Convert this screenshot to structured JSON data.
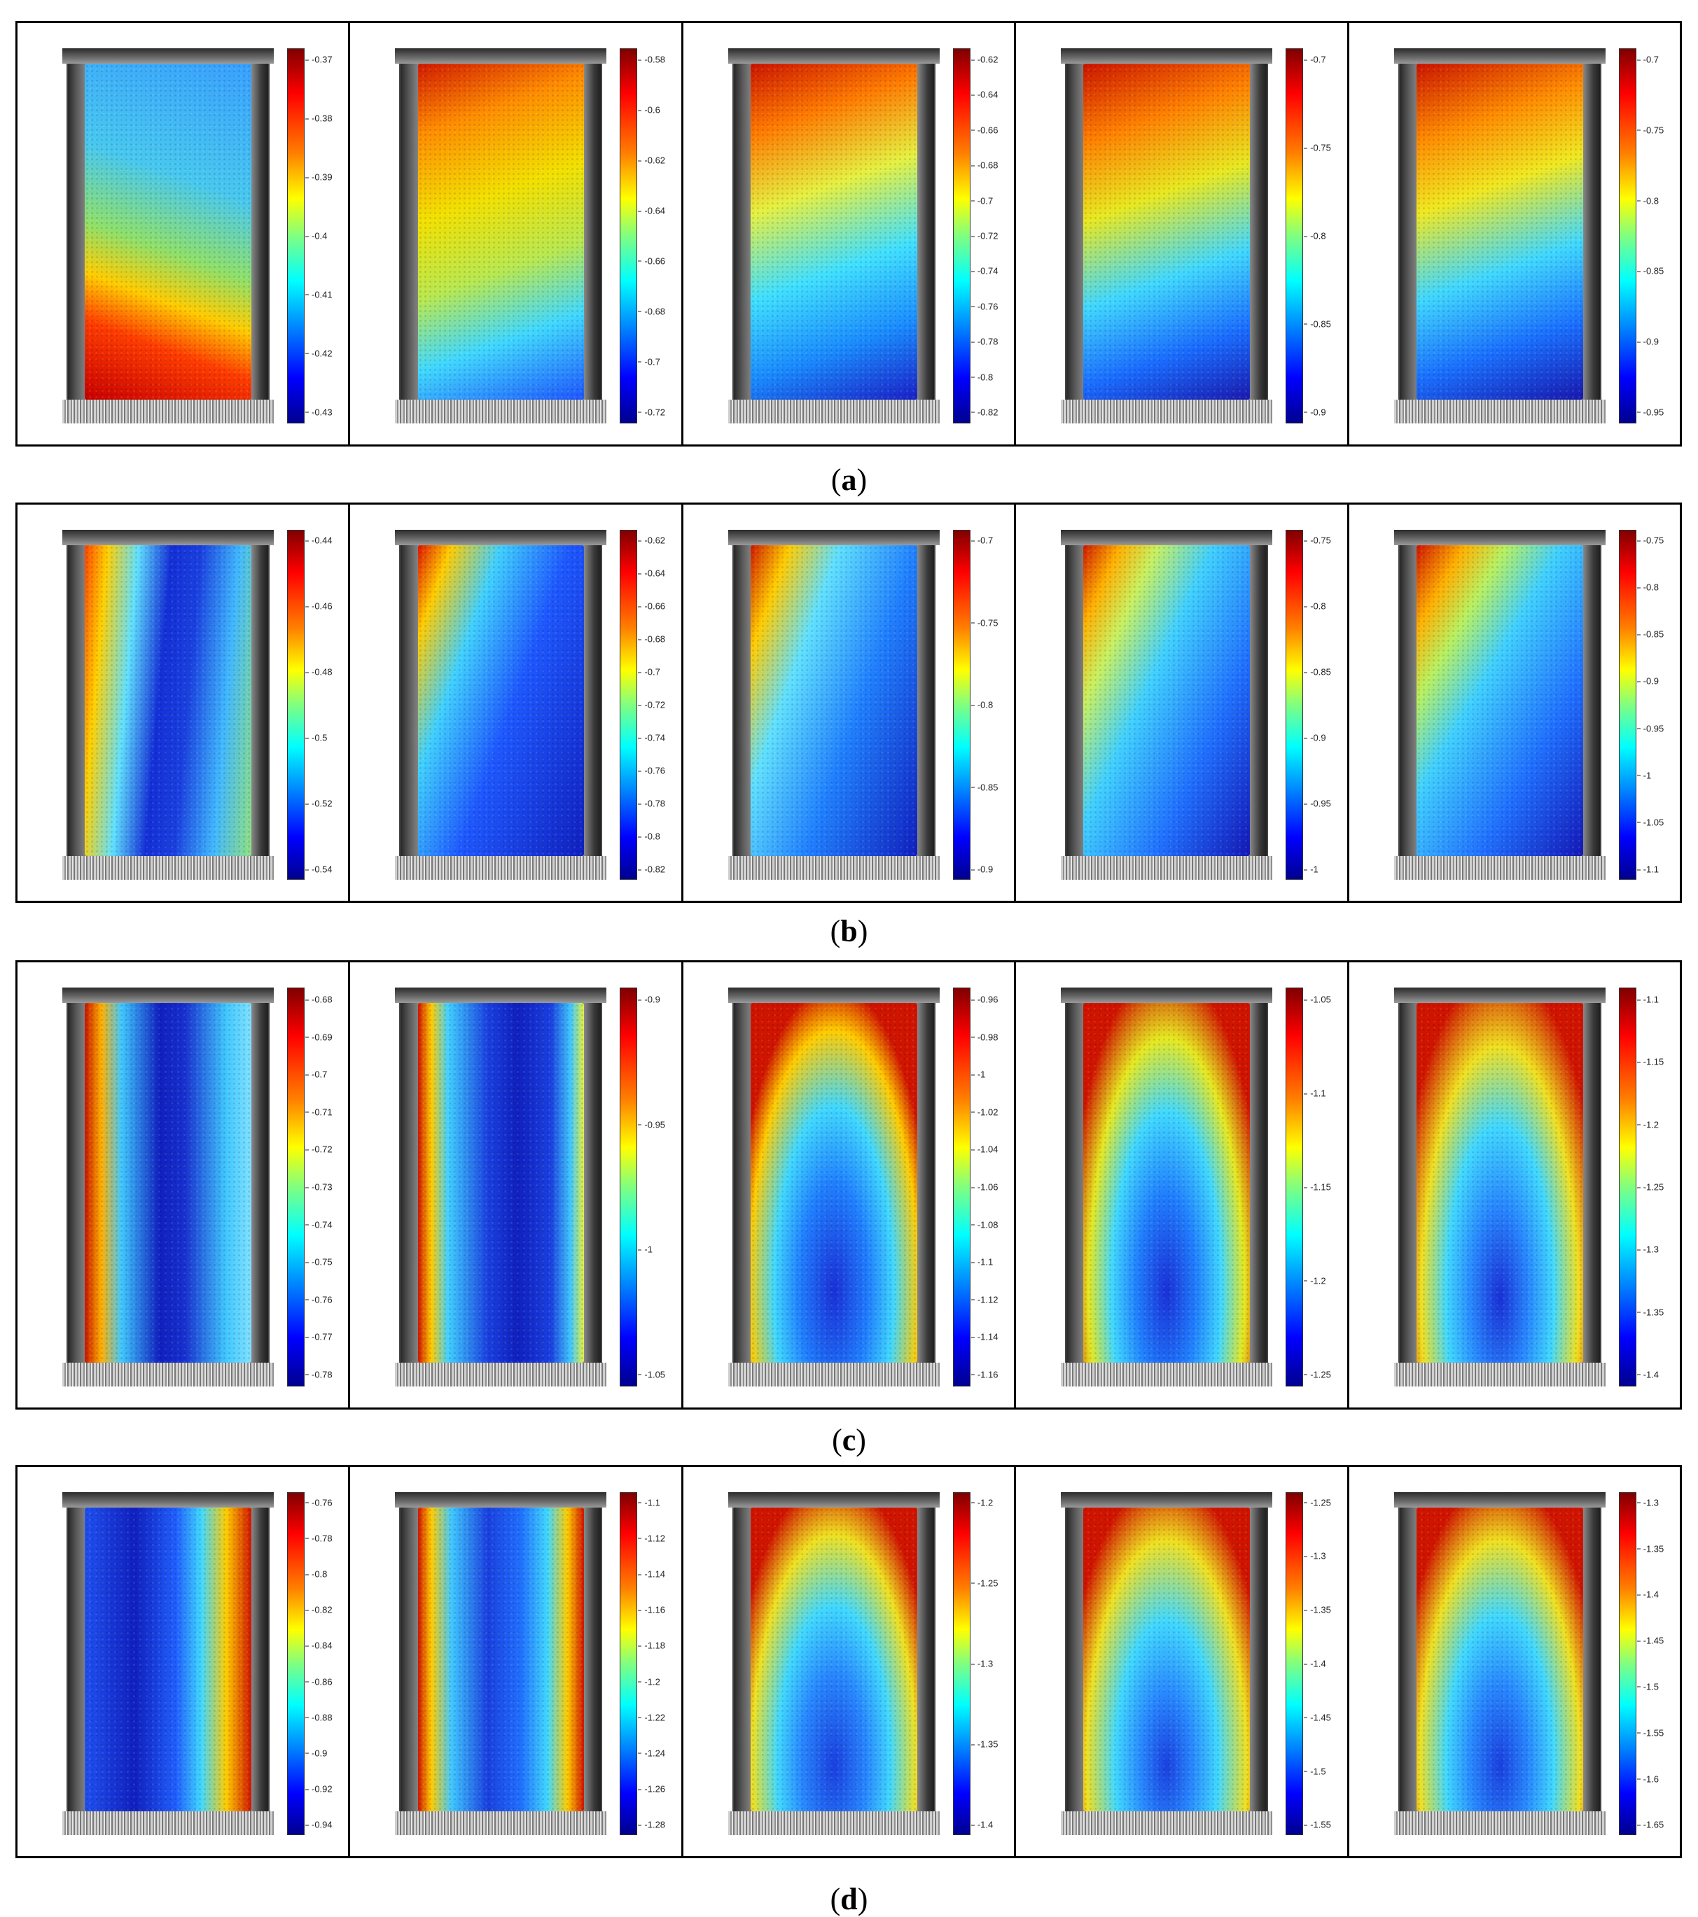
{
  "rows": [
    {
      "label": "a",
      "panels": [
        {
          "ticks": [
            "-0.37",
            "-0.38",
            "-0.39",
            "-0.4",
            "-0.41",
            "-0.42",
            "-0.43"
          ],
          "pattern": "a0"
        },
        {
          "ticks": [
            "-0.58",
            "-0.6",
            "-0.62",
            "-0.64",
            "-0.66",
            "-0.68",
            "-0.7",
            "-0.72"
          ],
          "pattern": "a1"
        },
        {
          "ticks": [
            "-0.62",
            "-0.64",
            "-0.66",
            "-0.68",
            "-0.7",
            "-0.72",
            "-0.74",
            "-0.76",
            "-0.78",
            "-0.8",
            "-0.82"
          ],
          "pattern": "a2"
        },
        {
          "ticks": [
            "-0.7",
            "-0.75",
            "-0.8",
            "-0.85",
            "-0.9"
          ],
          "pattern": "a3"
        },
        {
          "ticks": [
            "-0.7",
            "-0.75",
            "-0.8",
            "-0.85",
            "-0.9",
            "-0.95"
          ],
          "pattern": "a4"
        }
      ]
    },
    {
      "label": "b",
      "panels": [
        {
          "ticks": [
            "-0.44",
            "-0.46",
            "-0.48",
            "-0.5",
            "-0.52",
            "-0.54"
          ],
          "pattern": "b0"
        },
        {
          "ticks": [
            "-0.62",
            "-0.64",
            "-0.66",
            "-0.68",
            "-0.7",
            "-0.72",
            "-0.74",
            "-0.76",
            "-0.78",
            "-0.8",
            "-0.82"
          ],
          "pattern": "b1"
        },
        {
          "ticks": [
            "-0.7",
            "-0.75",
            "-0.8",
            "-0.85",
            "-0.9"
          ],
          "pattern": "b2"
        },
        {
          "ticks": [
            "-0.75",
            "-0.8",
            "-0.85",
            "-0.9",
            "-0.95",
            "-1"
          ],
          "pattern": "b3"
        },
        {
          "ticks": [
            "-0.75",
            "-0.8",
            "-0.85",
            "-0.9",
            "-0.95",
            "-1",
            "-1.05",
            "-1.1"
          ],
          "pattern": "b4"
        }
      ]
    },
    {
      "label": "c",
      "panels": [
        {
          "ticks": [
            "-0.68",
            "-0.69",
            "-0.7",
            "-0.71",
            "-0.72",
            "-0.73",
            "-0.74",
            "-0.75",
            "-0.76",
            "-0.77",
            "-0.78"
          ],
          "pattern": "c0"
        },
        {
          "ticks": [
            "-0.9",
            "-0.95",
            "-1",
            "-1.05"
          ],
          "pattern": "c1"
        },
        {
          "ticks": [
            "-0.96",
            "-0.98",
            "-1",
            "-1.02",
            "-1.04",
            "-1.06",
            "-1.08",
            "-1.1",
            "-1.12",
            "-1.14",
            "-1.16"
          ],
          "pattern": "c2"
        },
        {
          "ticks": [
            "-1.05",
            "-1.1",
            "-1.15",
            "-1.2",
            "-1.25"
          ],
          "pattern": "c3"
        },
        {
          "ticks": [
            "-1.1",
            "-1.15",
            "-1.2",
            "-1.25",
            "-1.3",
            "-1.35",
            "-1.4"
          ],
          "pattern": "c4"
        }
      ]
    },
    {
      "label": "d",
      "panels": [
        {
          "ticks": [
            "-0.76",
            "-0.78",
            "-0.8",
            "-0.82",
            "-0.84",
            "-0.86",
            "-0.88",
            "-0.9",
            "-0.92",
            "-0.94"
          ],
          "pattern": "d0"
        },
        {
          "ticks": [
            "-1.1",
            "-1.12",
            "-1.14",
            "-1.16",
            "-1.18",
            "-1.2",
            "-1.22",
            "-1.24",
            "-1.26",
            "-1.28"
          ],
          "pattern": "d1"
        },
        {
          "ticks": [
            "-1.2",
            "-1.25",
            "-1.3",
            "-1.35",
            "-1.4"
          ],
          "pattern": "d2"
        },
        {
          "ticks": [
            "-1.25",
            "-1.3",
            "-1.35",
            "-1.4",
            "-1.45",
            "-1.5",
            "-1.55"
          ],
          "pattern": "d3"
        },
        {
          "ticks": [
            "-1.3",
            "-1.35",
            "-1.4",
            "-1.45",
            "-1.5",
            "-1.55",
            "-1.6",
            "-1.65"
          ],
          "pattern": "d4"
        }
      ]
    }
  ],
  "colormap": "jet"
}
